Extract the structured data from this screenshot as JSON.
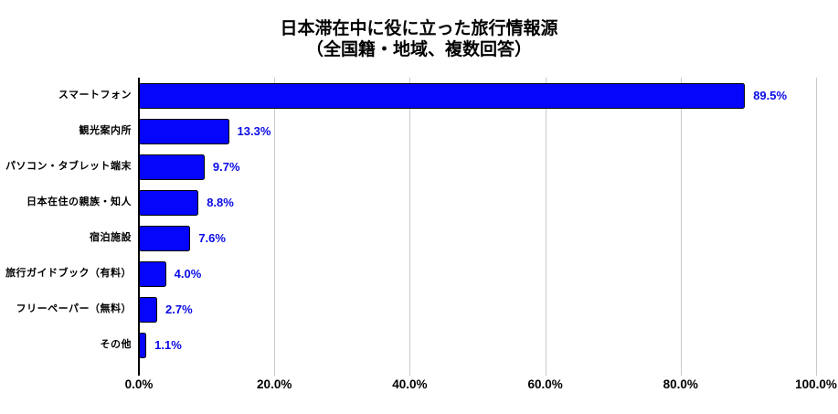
{
  "title": {
    "line1": "日本滞在中に役に立った旅行情報源",
    "line2": "（全国籍・地域、複数回答）"
  },
  "chart_data": {
    "type": "bar",
    "orientation": "horizontal",
    "title": "日本滞在中に役に立った旅行情報源（全国籍・地域、複数回答）",
    "categories": [
      "スマートフォン",
      "観光案内所",
      "パソコン・タブレット端末",
      "日本在住の親族・知人",
      "宿泊施設",
      "旅行ガイドブック（有料）",
      "フリーペーパー（無料）",
      "その他"
    ],
    "values": [
      89.5,
      13.3,
      9.7,
      8.8,
      7.6,
      4.0,
      2.7,
      1.1
    ],
    "value_labels": [
      "89.5%",
      "13.3%",
      "9.7%",
      "8.8%",
      "7.6%",
      "4.0%",
      "2.7%",
      "1.1%"
    ],
    "xlabel": "",
    "ylabel": "",
    "xlim": [
      0,
      100
    ],
    "x_ticks": [
      {
        "value": 0,
        "label": "0.0%"
      },
      {
        "value": 20,
        "label": "20.0%"
      },
      {
        "value": 40,
        "label": "40.0%"
      },
      {
        "value": 60,
        "label": "60.0%"
      },
      {
        "value": 80,
        "label": "80.0%"
      },
      {
        "value": 100,
        "label": "100.0%"
      }
    ],
    "grid": "vertical",
    "legend": "none",
    "colors": {
      "bar_fill": "#0505FA",
      "bar_border": "#000000",
      "value_label": "#0A0AE6",
      "gridline": "#C9C9C9",
      "axis_line": "#000000",
      "text": "#000000",
      "background": "#FFFFFF"
    }
  }
}
